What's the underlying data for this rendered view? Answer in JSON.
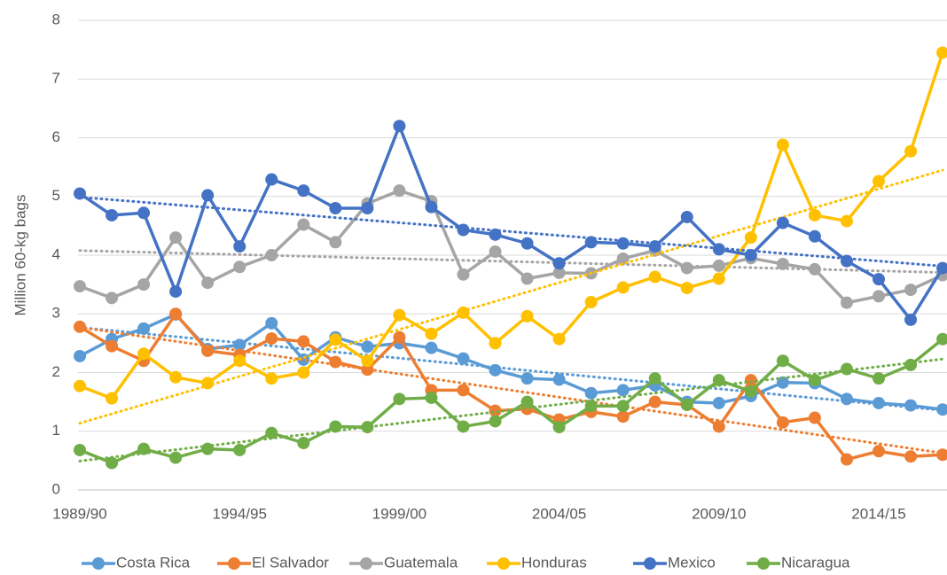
{
  "chart_data": {
    "type": "line",
    "y_label": "Million 60-kg bags",
    "categories": [
      "1989/90",
      null,
      null,
      null,
      null,
      "1994/95",
      null,
      null,
      null,
      null,
      "1999/00",
      null,
      null,
      null,
      null,
      "2004/05",
      null,
      null,
      null,
      null,
      "2009/10",
      null,
      null,
      null,
      null,
      "2014/15",
      null,
      null
    ],
    "series": [
      {
        "name": "Costa Rica",
        "color": "#5b9bd5",
        "values": [
          2.28,
          2.57,
          2.75,
          2.99,
          2.4,
          2.47,
          2.84,
          2.22,
          2.6,
          2.44,
          2.5,
          2.42,
          2.24,
          2.04,
          1.9,
          1.88,
          1.65,
          1.7,
          1.78,
          1.5,
          1.48,
          1.6,
          1.83,
          1.82,
          1.55,
          1.48,
          1.44,
          1.37
        ]
      },
      {
        "name": "El Salvador",
        "color": "#ed7d31",
        "values": [
          2.78,
          2.45,
          2.2,
          3.0,
          2.37,
          2.3,
          2.58,
          2.53,
          2.18,
          2.05,
          2.6,
          1.7,
          1.7,
          1.35,
          1.38,
          1.2,
          1.33,
          1.25,
          1.5,
          1.45,
          1.08,
          1.87,
          1.15,
          1.23,
          0.52,
          0.66,
          0.57,
          0.6
        ]
      },
      {
        "name": "Guatemala",
        "color": "#a5a5a5",
        "values": [
          3.47,
          3.27,
          3.5,
          4.3,
          3.53,
          3.8,
          4.0,
          4.52,
          4.22,
          4.88,
          5.1,
          4.92,
          3.67,
          4.06,
          3.6,
          3.7,
          3.69,
          3.94,
          4.08,
          3.78,
          3.82,
          3.95,
          3.85,
          3.76,
          3.19,
          3.3,
          3.41,
          3.66
        ]
      },
      {
        "name": "Honduras",
        "color": "#ffc000",
        "values": [
          1.77,
          1.56,
          2.32,
          1.92,
          1.82,
          2.2,
          1.9,
          2.0,
          2.56,
          2.2,
          2.98,
          2.66,
          3.02,
          2.5,
          2.96,
          2.57,
          3.2,
          3.45,
          3.63,
          3.44,
          3.6,
          4.3,
          5.88,
          4.68,
          4.58,
          5.26,
          5.77,
          7.45
        ]
      },
      {
        "name": "Mexico",
        "color": "#4472c4",
        "values": [
          5.05,
          4.68,
          4.72,
          3.38,
          5.02,
          4.15,
          5.29,
          5.1,
          4.8,
          4.8,
          6.2,
          4.82,
          4.43,
          4.35,
          4.2,
          3.86,
          4.22,
          4.2,
          4.15,
          4.65,
          4.1,
          4.0,
          4.55,
          4.32,
          3.9,
          3.59,
          2.9,
          3.78
        ]
      },
      {
        "name": "Nicaragua",
        "color": "#70ad47",
        "values": [
          0.68,
          0.46,
          0.7,
          0.55,
          0.7,
          0.68,
          0.97,
          0.8,
          1.08,
          1.07,
          1.55,
          1.57,
          1.08,
          1.17,
          1.5,
          1.07,
          1.43,
          1.43,
          1.9,
          1.45,
          1.87,
          1.68,
          2.2,
          1.87,
          2.06,
          1.9,
          2.13,
          2.57
        ]
      }
    ],
    "ylim": [
      0,
      8
    ],
    "yticks": [
      0,
      1,
      2,
      3,
      4,
      5,
      6,
      7,
      8
    ],
    "grid": true,
    "trendline": "linear",
    "legend": "bottom"
  }
}
